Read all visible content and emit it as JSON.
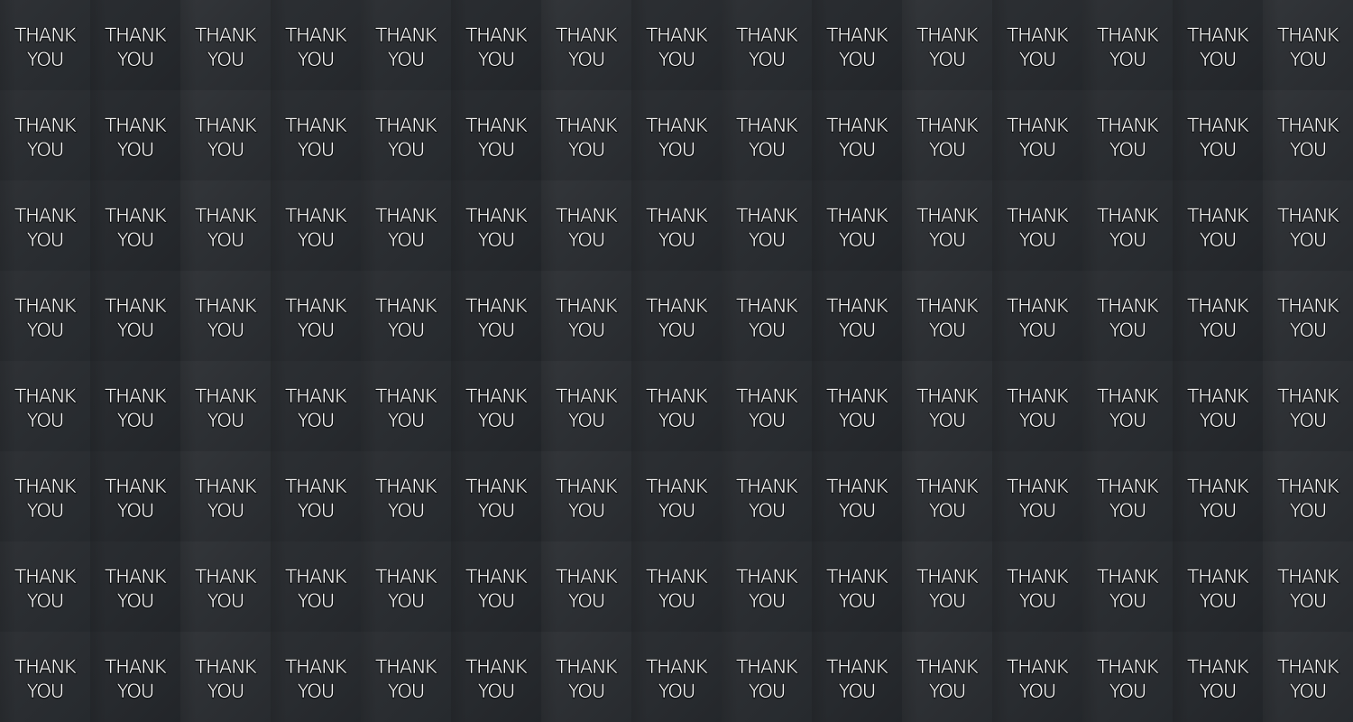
{
  "tiles": [
    {
      "line1": "THANK",
      "line2": "YOU"
    },
    {
      "line1": "THANK",
      "line2": "YOU"
    },
    {
      "line1": "THANK",
      "line2": "YOU"
    },
    {
      "line1": "THANK",
      "line2": "YOU"
    },
    {
      "line1": "THANK",
      "line2": "YOU"
    },
    {
      "line1": "THANK",
      "line2": "YOU"
    },
    {
      "line1": "THANK",
      "line2": "YOU"
    },
    {
      "line1": "THANK",
      "line2": "YOU"
    },
    {
      "line1": "THANK",
      "line2": "YOU"
    },
    {
      "line1": "THANK",
      "line2": "YOU"
    },
    {
      "line1": "THANK",
      "line2": "YOU"
    },
    {
      "line1": "THANK",
      "line2": "YOU"
    },
    {
      "line1": "THANK",
      "line2": "YOU"
    },
    {
      "line1": "THANK",
      "line2": "YOU"
    },
    {
      "line1": "THANK",
      "line2": "YOU"
    },
    {
      "line1": "THANK",
      "line2": "YOU"
    },
    {
      "line1": "THANK",
      "line2": "YOU"
    },
    {
      "line1": "THANK",
      "line2": "YOU"
    },
    {
      "line1": "THANK",
      "line2": "YOU"
    },
    {
      "line1": "THANK",
      "line2": "YOU"
    },
    {
      "line1": "THANK",
      "line2": "YOU"
    },
    {
      "line1": "THANK",
      "line2": "YOU"
    },
    {
      "line1": "THANK",
      "line2": "YOU"
    },
    {
      "line1": "THANK",
      "line2": "YOU"
    },
    {
      "line1": "THANK",
      "line2": "YOU"
    },
    {
      "line1": "THANK",
      "line2": "YOU"
    },
    {
      "line1": "THANK",
      "line2": "YOU"
    },
    {
      "line1": "THANK",
      "line2": "YOU"
    },
    {
      "line1": "THANK",
      "line2": "YOU"
    },
    {
      "line1": "THANK",
      "line2": "YOU"
    },
    {
      "line1": "THANK",
      "line2": "YOU"
    },
    {
      "line1": "THANK",
      "line2": "YOU"
    },
    {
      "line1": "THANK",
      "line2": "YOU"
    },
    {
      "line1": "THANK",
      "line2": "YOU"
    },
    {
      "line1": "THANK",
      "line2": "YOU"
    },
    {
      "line1": "THANK",
      "line2": "YOU"
    },
    {
      "line1": "THANK",
      "line2": "YOU"
    },
    {
      "line1": "THANK",
      "line2": "YOU"
    },
    {
      "line1": "THANK",
      "line2": "YOU"
    },
    {
      "line1": "THANK",
      "line2": "YOU"
    },
    {
      "line1": "THANK",
      "line2": "YOU"
    },
    {
      "line1": "THANK",
      "line2": "YOU"
    },
    {
      "line1": "THANK",
      "line2": "YOU"
    },
    {
      "line1": "THANK",
      "line2": "YOU"
    },
    {
      "line1": "THANK",
      "line2": "YOU"
    },
    {
      "line1": "THANK",
      "line2": "YOU"
    },
    {
      "line1": "THANK",
      "line2": "YOU"
    },
    {
      "line1": "THANK",
      "line2": "YOU"
    },
    {
      "line1": "THANK",
      "line2": "YOU"
    },
    {
      "line1": "THANK",
      "line2": "YOU"
    },
    {
      "line1": "THANK",
      "line2": "YOU"
    },
    {
      "line1": "THANK",
      "line2": "YOU"
    },
    {
      "line1": "THANK",
      "line2": "YOU"
    },
    {
      "line1": "THANK",
      "line2": "YOU"
    },
    {
      "line1": "THANK",
      "line2": "YOU"
    },
    {
      "line1": "THANK",
      "line2": "YOU"
    },
    {
      "line1": "THANK",
      "line2": "YOU"
    },
    {
      "line1": "THANK",
      "line2": "YOU"
    },
    {
      "line1": "THANK",
      "line2": "YOU"
    },
    {
      "line1": "THANK",
      "line2": "YOU"
    },
    {
      "line1": "THANK",
      "line2": "YOU"
    },
    {
      "line1": "THANK",
      "line2": "YOU"
    },
    {
      "line1": "THANK",
      "line2": "YOU"
    },
    {
      "line1": "THANK",
      "line2": "YOU"
    },
    {
      "line1": "THANK",
      "line2": "YOU"
    },
    {
      "line1": "THANK",
      "line2": "YOU"
    },
    {
      "line1": "THANK",
      "line2": "YOU"
    },
    {
      "line1": "THANK",
      "line2": "YOU"
    },
    {
      "line1": "THANK",
      "line2": "YOU"
    },
    {
      "line1": "THANK",
      "line2": "YOU"
    },
    {
      "line1": "THANK",
      "line2": "YOU"
    },
    {
      "line1": "THANK",
      "line2": "YOU"
    },
    {
      "line1": "THANK",
      "line2": "YOU"
    },
    {
      "line1": "THANK",
      "line2": "YOU"
    },
    {
      "line1": "THANK",
      "line2": "YOU"
    },
    {
      "line1": "THANK",
      "line2": "YOU"
    },
    {
      "line1": "THANK",
      "line2": "YOU"
    },
    {
      "line1": "THANK",
      "line2": "YOU"
    },
    {
      "line1": "THANK",
      "line2": "YOU"
    },
    {
      "line1": "THANK",
      "line2": "YOU"
    },
    {
      "line1": "THANK",
      "line2": "YOU"
    },
    {
      "line1": "THANK",
      "line2": "YOU"
    },
    {
      "line1": "THANK",
      "line2": "YOU"
    },
    {
      "line1": "THANK",
      "line2": "YOU"
    },
    {
      "line1": "THANK",
      "line2": "YOU"
    },
    {
      "line1": "THANK",
      "line2": "YOU"
    },
    {
      "line1": "THANK",
      "line2": "YOU"
    },
    {
      "line1": "THANK",
      "line2": "YOU"
    },
    {
      "line1": "THANK",
      "line2": "YOU"
    },
    {
      "line1": "THANK",
      "line2": "YOU"
    },
    {
      "line1": "THANK",
      "line2": "YOU"
    },
    {
      "line1": "THANK",
      "line2": "YOU"
    },
    {
      "line1": "THANK",
      "line2": "YOU"
    },
    {
      "line1": "THANK",
      "line2": "YOU"
    },
    {
      "line1": "THANK",
      "line2": "YOU"
    },
    {
      "line1": "THANK",
      "line2": "YOU"
    },
    {
      "line1": "THANK",
      "line2": "YOU"
    },
    {
      "line1": "THANK",
      "line2": "YOU"
    },
    {
      "line1": "THANK",
      "line2": "YOU"
    },
    {
      "line1": "THANK",
      "line2": "YOU"
    },
    {
      "line1": "THANK",
      "line2": "YOU"
    },
    {
      "line1": "THANK",
      "line2": "YOU"
    },
    {
      "line1": "THANK",
      "line2": "YOU"
    },
    {
      "line1": "THANK",
      "line2": "YOU"
    },
    {
      "line1": "THANK",
      "line2": "YOU"
    },
    {
      "line1": "THANK",
      "line2": "YOU"
    },
    {
      "line1": "THANK",
      "line2": "YOU"
    },
    {
      "line1": "THANK",
      "line2": "YOU"
    },
    {
      "line1": "THANK",
      "line2": "YOU"
    },
    {
      "line1": "THANK",
      "line2": "YOU"
    },
    {
      "line1": "THANK",
      "line2": "YOU"
    },
    {
      "line1": "THANK",
      "line2": "YOU"
    },
    {
      "line1": "THANK",
      "line2": "YOU"
    },
    {
      "line1": "THANK",
      "line2": "YOU"
    },
    {
      "line1": "THANK",
      "line2": "YOU"
    },
    {
      "line1": "THANK",
      "line2": "YOU"
    },
    {
      "line1": "THANK",
      "line2": "YOU"
    },
    {
      "line1": "THANK",
      "line2": "YOU"
    },
    {
      "line1": "THANK",
      "line2": "YOU"
    },
    {
      "line1": "THANK",
      "line2": "YOU"
    }
  ]
}
